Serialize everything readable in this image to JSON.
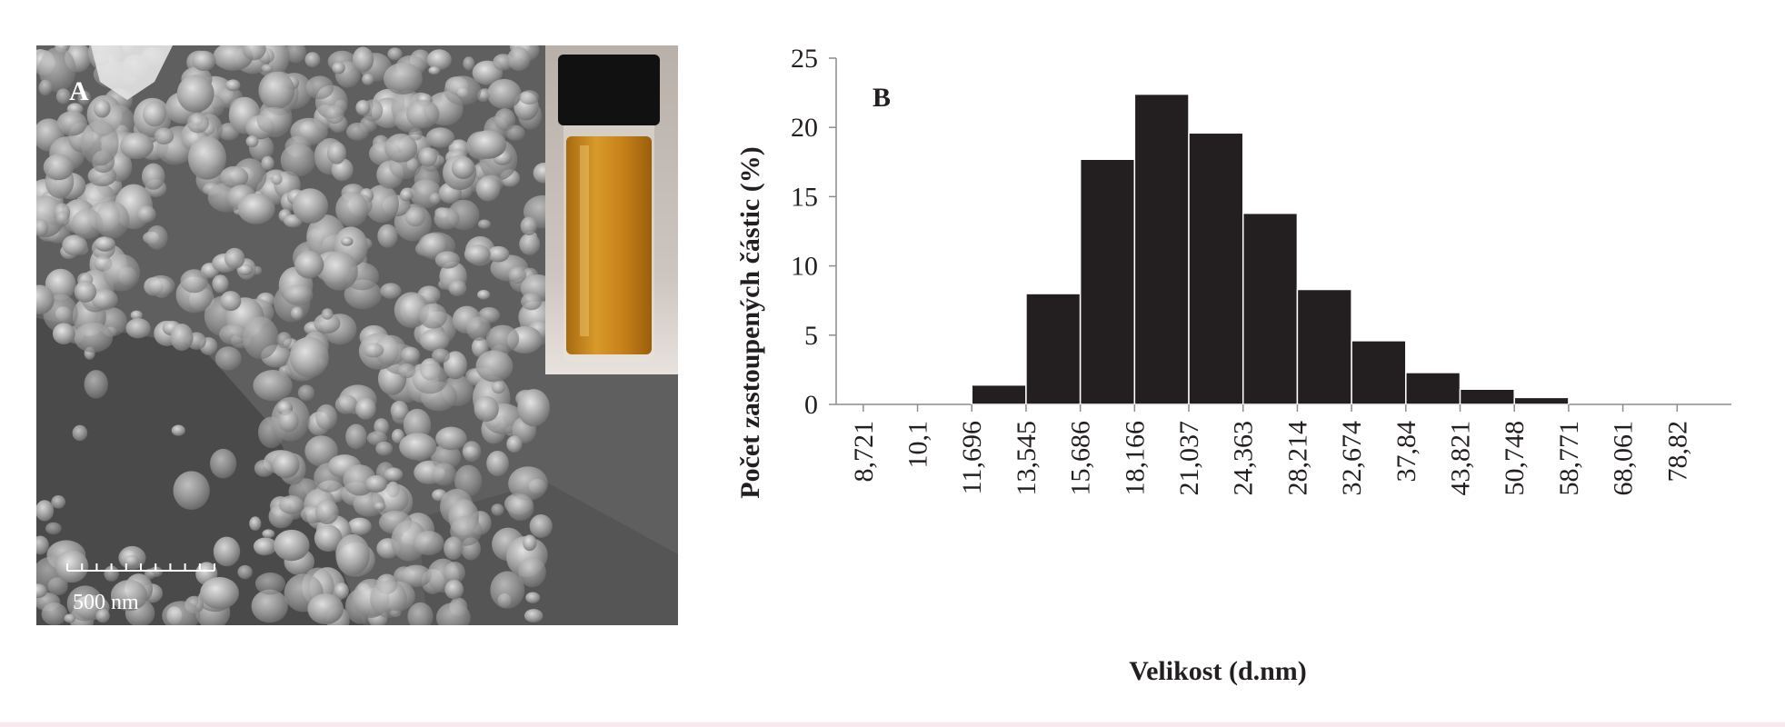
{
  "panel_a": {
    "label": "A",
    "scale_bar_label": "500 nm",
    "inset_liquid_color": "#c8821a"
  },
  "panel_b": {
    "label": "B"
  },
  "chart_data": {
    "type": "bar",
    "xlabel": "Velikost (d.nm)",
    "ylabel": "Počet zastoupených částic (%)",
    "ylim": [
      0,
      25
    ],
    "yticks": [
      0,
      5,
      10,
      15,
      20,
      25
    ],
    "categories": [
      "8,721",
      "10,1",
      "11,696",
      "13,545",
      "15,686",
      "18,166",
      "21,037",
      "24,363",
      "28,214",
      "32,674",
      "37,84",
      "43,821",
      "50,748",
      "58,771",
      "68,061",
      "78,82"
    ],
    "bars": [
      {
        "from": "11,696",
        "value": 1.4
      },
      {
        "from": "13,545",
        "value": 8.0
      },
      {
        "from": "15,686",
        "value": 17.7
      },
      {
        "from": "18,166",
        "value": 22.4
      },
      {
        "from": "21,037",
        "value": 19.6
      },
      {
        "from": "24,363",
        "value": 13.8
      },
      {
        "from": "28,214",
        "value": 8.3
      },
      {
        "from": "32,674",
        "value": 4.6
      },
      {
        "from": "37,84",
        "value": 2.3
      },
      {
        "from": "43,821",
        "value": 1.1
      },
      {
        "from": "50,748",
        "value": 0.5
      }
    ],
    "bar_color": "#231f20",
    "grid": false
  }
}
